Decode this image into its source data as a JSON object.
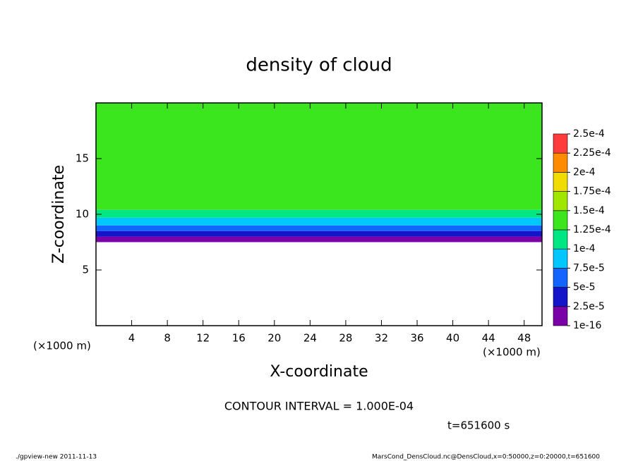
{
  "chart_data": {
    "type": "contour",
    "title": "density of cloud",
    "x_label": "X-coordinate",
    "y_label": "Z-coordinate",
    "x_unit": "(×1000 m)",
    "annotation": "CONTOUR INTERVAL = 1.000E-04",
    "time_label": "t=651600 s",
    "footer_left": "./gpview-new  2011-11-13",
    "footer_right": "MarsCond_DensCloud.nc@DensCloud,x=0:50000,z=0:20000,t=651600",
    "xlim": [
      0,
      50
    ],
    "xticks": [
      4,
      8,
      12,
      16,
      20,
      24,
      28,
      32,
      36,
      40,
      44,
      48
    ],
    "ylim": [
      0,
      20
    ],
    "yticks": [
      5,
      10,
      15
    ],
    "z_edges": [
      7.5,
      8,
      8.5,
      9,
      9.7,
      10.4,
      20
    ],
    "values": [
      1e-05,
      3.5e-05,
      6e-05,
      8.5e-05,
      0.00011,
      0.00014
    ],
    "levels": [
      1e-16,
      {
        "value": 2.5e-05,
        "label": "2.5e-5"
      },
      {
        "value": 5e-05,
        "label": "5e-5"
      },
      {
        "value": 7.5e-05,
        "label": "7.5e-5"
      },
      {
        "value": 0.0001,
        "label": "1e-4"
      },
      {
        "value": 0.000125,
        "label": "1.25e-4"
      },
      {
        "value": 0.00015,
        "label": "1.5e-4"
      },
      {
        "value": 0.000175,
        "label": "1.75e-4"
      },
      {
        "value": 0.0002,
        "label": "2e-4"
      },
      {
        "value": 0.000225,
        "label": "2.25e-4"
      },
      {
        "value": 0.00025,
        "label": "2.5e-4"
      }
    ],
    "colors": [
      "#7a00a8",
      "#1414c8",
      "#1464ff",
      "#00c8ff",
      "#00e682",
      "#3ce61e",
      "#a0e600",
      "#f0dc00",
      "#ff8c00",
      "#ff3c3c"
    ]
  }
}
